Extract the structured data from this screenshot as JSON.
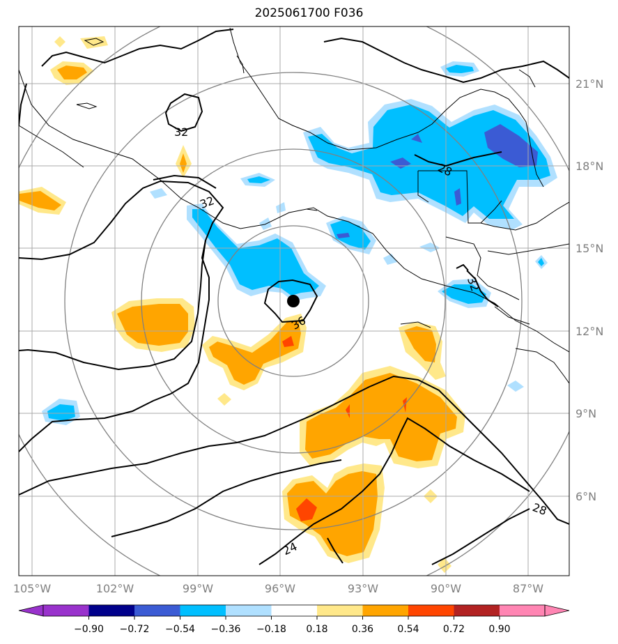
{
  "title": "2025061700 F036",
  "lon_labels": [
    "105°W",
    "102°W",
    "99°W",
    "96°W",
    "93°W",
    "90°W",
    "87°W"
  ],
  "lat_labels": [
    "21°N",
    "18°N",
    "15°N",
    "12°N",
    "9°N",
    "6°N"
  ],
  "contour_labels": [
    "32",
    "32",
    "28",
    "32",
    "36",
    "24",
    "28"
  ],
  "colorbar": {
    "ticks": [
      "−0.90",
      "−0.72",
      "−0.54",
      "−0.36",
      "−0.18",
      "0.18",
      "0.36",
      "0.54",
      "0.72",
      "0.90"
    ],
    "colors": [
      "#9932cc",
      "#00008b",
      "#3b5bd4",
      "#00bfff",
      "#b0e0ff",
      "#ffffff",
      "#ffe88a",
      "#ffa500",
      "#ff4500",
      "#b22222",
      "#ff85b3"
    ]
  },
  "legend_colors": {
    "negative_mid": "#00bfff",
    "negative_strong": "#3b5bd4",
    "positive_mid": "#ffa500",
    "positive_weak": "#ffe88a",
    "positive_strong": "#ff4500"
  },
  "center_marker": {
    "lon": -95.35,
    "lat": 13.1
  }
}
